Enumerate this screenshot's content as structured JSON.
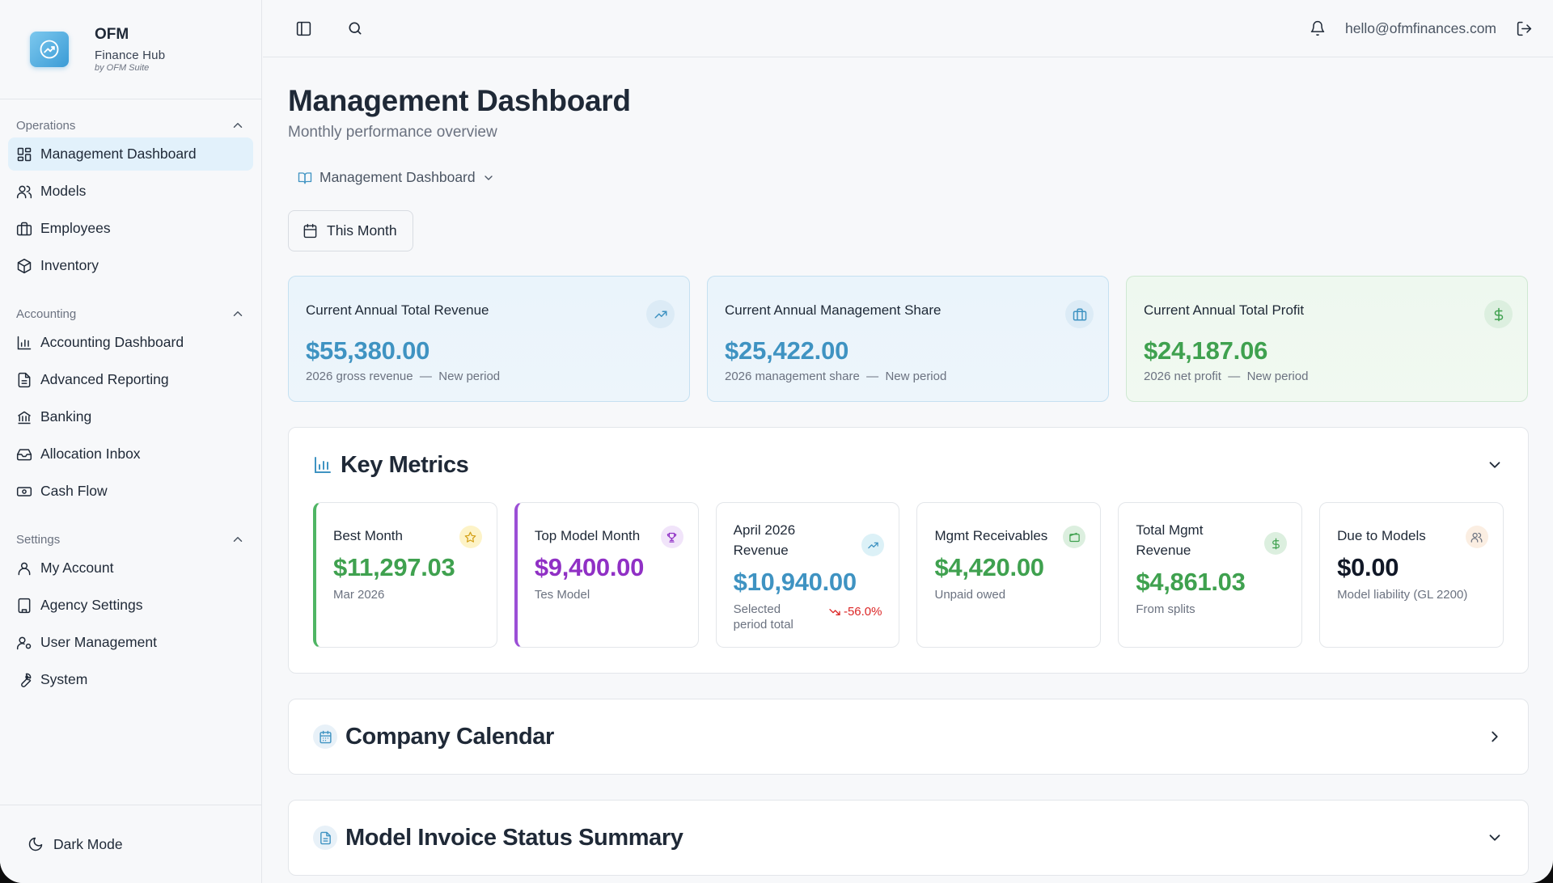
{
  "brand": {
    "name": "OFM",
    "subtitle": "Finance Hub",
    "by": "by OFM Suite"
  },
  "sidebar": {
    "sections": [
      {
        "title": "Operations",
        "items": [
          {
            "label": "Management Dashboard",
            "icon": "dashboard-icon",
            "active": true
          },
          {
            "label": "Models",
            "icon": "users-icon"
          },
          {
            "label": "Employees",
            "icon": "briefcase-icon"
          },
          {
            "label": "Inventory",
            "icon": "box-icon"
          }
        ]
      },
      {
        "title": "Accounting",
        "items": [
          {
            "label": "Accounting Dashboard",
            "icon": "bar-chart-icon"
          },
          {
            "label": "Advanced Reporting",
            "icon": "report-icon"
          },
          {
            "label": "Banking",
            "icon": "bank-icon"
          },
          {
            "label": "Allocation Inbox",
            "icon": "inbox-icon"
          },
          {
            "label": "Cash Flow",
            "icon": "cash-icon"
          }
        ]
      },
      {
        "title": "Settings",
        "items": [
          {
            "label": "My Account",
            "icon": "user-icon"
          },
          {
            "label": "Agency Settings",
            "icon": "building-icon"
          },
          {
            "label": "User Management",
            "icon": "user-cog-icon"
          },
          {
            "label": "System",
            "icon": "wrench-icon"
          }
        ]
      }
    ],
    "dark_mode_label": "Dark Mode"
  },
  "topbar": {
    "email": "hello@ofmfinances.com"
  },
  "page": {
    "title": "Management Dashboard",
    "subtitle": "Monthly performance overview",
    "dashboard_selector": "Management Dashboard",
    "period": "This Month"
  },
  "summary": [
    {
      "title": "Current Annual Total Revenue",
      "value": "$55,380.00",
      "note": "2026 gross revenue",
      "status": "New period",
      "color": "#3f93c2",
      "icon": "trending-up-icon"
    },
    {
      "title": "Current Annual Management Share",
      "value": "$25,422.00",
      "note": "2026 management share",
      "status": "New period",
      "color": "#3f93c2",
      "icon": "briefcase-icon"
    },
    {
      "title": "Current Annual Total Profit",
      "value": "$24,187.06",
      "note": "2026 net profit",
      "status": "New period",
      "color": "#3fa14f",
      "icon": "dollar-icon"
    }
  ],
  "key_metrics": {
    "title": "Key Metrics",
    "items": [
      {
        "title": "Best Month",
        "value": "$11,297.03",
        "note": "Mar 2026",
        "icon": "star-icon"
      },
      {
        "title": "Top Model Month",
        "value": "$9,400.00",
        "note": "Tes Model",
        "icon": "trophy-icon"
      },
      {
        "title": "April 2026 Revenue",
        "value": "$10,940.00",
        "note": "Selected period total",
        "change": "-56.0%",
        "icon": "trending-up-icon"
      },
      {
        "title": "Mgmt Receivables",
        "value": "$4,420.00",
        "note": "Unpaid owed",
        "icon": "wallet-icon"
      },
      {
        "title": "Total Mgmt Revenue",
        "value": "$4,861.03",
        "note": "From splits",
        "icon": "dollar-icon"
      },
      {
        "title": "Due to Models",
        "value": "$0.00",
        "note": "Model liability (GL 2200)",
        "icon": "users-icon"
      }
    ]
  },
  "sections": {
    "calendar": "Company Calendar",
    "invoice": "Model Invoice Status Summary"
  },
  "colors": {
    "accent_blue": "#3f93c2",
    "accent_green": "#3fa14f",
    "accent_purple": "#9030c5",
    "negative": "#dc2626",
    "active_bg": "#e2f1fb"
  }
}
